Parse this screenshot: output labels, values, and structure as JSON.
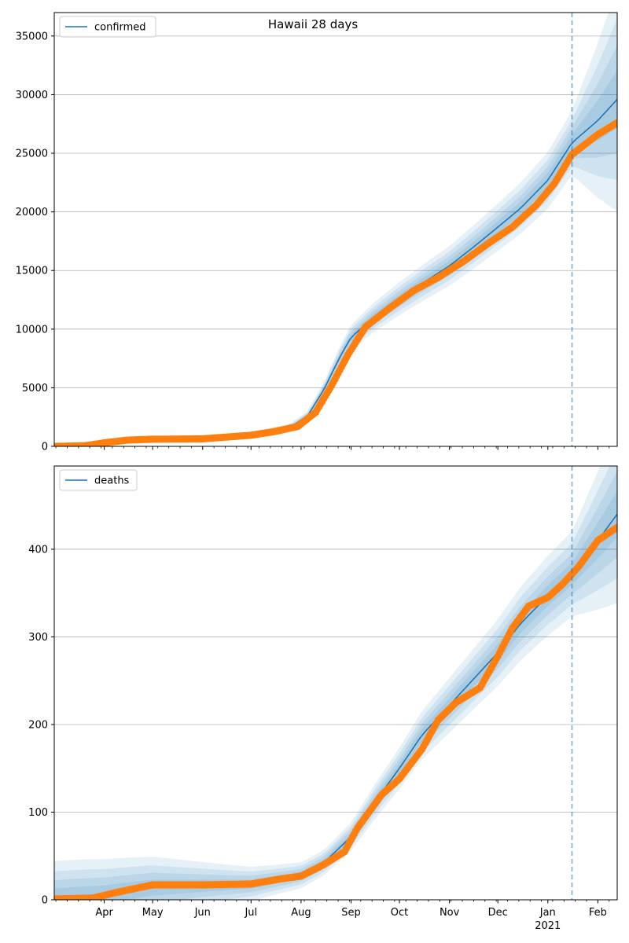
{
  "figure": {
    "title": "Hawaii 28 days"
  },
  "colors": {
    "model_line": "#1f77b4",
    "observed_points": "#ff7f0e",
    "band": "#1f77b4",
    "grid": "#b0b0b0",
    "vline": "#1f77b4"
  },
  "chart_data": [
    {
      "type": "line",
      "name": "confirmed-panel",
      "legend": [
        "confirmed"
      ],
      "legend_position": "top-left",
      "grid": "horizontal",
      "x_axis": {
        "type": "date",
        "xlim": [
          "2020-03-01",
          "2021-02-13"
        ]
      },
      "ylim": [
        0,
        37000
      ],
      "yticks": [
        0,
        5000,
        10000,
        15000,
        20000,
        25000,
        30000,
        35000
      ],
      "vline_date": "2021-01-16",
      "series": [
        {
          "name": "confirmed",
          "role": "model",
          "points": [
            [
              "2020-03-01",
              0
            ],
            [
              "2020-04-01",
              300
            ],
            [
              "2020-05-01",
              600
            ],
            [
              "2020-06-01",
              650
            ],
            [
              "2020-07-01",
              950
            ],
            [
              "2020-07-25",
              1600
            ],
            [
              "2020-08-05",
              2600
            ],
            [
              "2020-08-15",
              4800
            ],
            [
              "2020-08-25",
              7600
            ],
            [
              "2020-09-01",
              9300
            ],
            [
              "2020-09-15",
              11000
            ],
            [
              "2020-10-01",
              12600
            ],
            [
              "2020-10-15",
              13900
            ],
            [
              "2020-11-01",
              15400
            ],
            [
              "2020-11-15",
              16900
            ],
            [
              "2020-12-01",
              18700
            ],
            [
              "2020-12-15",
              20300
            ],
            [
              "2021-01-01",
              22700
            ],
            [
              "2021-01-16",
              25900
            ],
            [
              "2021-02-01",
              27800
            ],
            [
              "2021-02-13",
              29600
            ]
          ]
        },
        {
          "name": "",
          "role": "observed",
          "points": [
            [
              "2020-03-01",
              0
            ],
            [
              "2020-03-20",
              50
            ],
            [
              "2020-04-01",
              300
            ],
            [
              "2020-04-15",
              530
            ],
            [
              "2020-05-01",
              610
            ],
            [
              "2020-06-01",
              640
            ],
            [
              "2020-07-01",
              950
            ],
            [
              "2020-07-15",
              1250
            ],
            [
              "2020-07-30",
              1700
            ],
            [
              "2020-08-10",
              2900
            ],
            [
              "2020-08-20",
              5200
            ],
            [
              "2020-08-30",
              7800
            ],
            [
              "2020-09-10",
              10200
            ],
            [
              "2020-09-25",
              11800
            ],
            [
              "2020-10-10",
              13300
            ],
            [
              "2020-10-25",
              14400
            ],
            [
              "2020-11-10",
              15800
            ],
            [
              "2020-11-25",
              17300
            ],
            [
              "2020-12-10",
              18700
            ],
            [
              "2020-12-25",
              20600
            ],
            [
              "2021-01-05",
              22400
            ],
            [
              "2021-01-16",
              24900
            ],
            [
              "2021-02-01",
              26600
            ],
            [
              "2021-02-13",
              27600
            ]
          ]
        }
      ],
      "bands": [
        {
          "lower": [
            [
              0.8,
              0.2
            ]
          ],
          "upper": []
        }
      ]
    },
    {
      "type": "line",
      "name": "deaths-panel",
      "legend": [
        "deaths"
      ],
      "legend_position": "top-left",
      "grid": "horizontal",
      "x_axis": {
        "type": "date",
        "xlim": [
          "2020-03-01",
          "2021-02-13"
        ],
        "tick_labels": [
          "Apr",
          "May",
          "Jun",
          "Jul",
          "Aug",
          "Sep",
          "Oct",
          "Nov",
          "Dec",
          "Jan",
          "Feb"
        ],
        "year_label": "2021"
      },
      "ylim": [
        0,
        495
      ],
      "yticks": [
        0,
        100,
        200,
        300,
        400
      ],
      "vline_date": "2021-01-16",
      "series": [
        {
          "name": "deaths",
          "role": "model",
          "points": [
            [
              "2020-03-01",
              2
            ],
            [
              "2020-04-01",
              6
            ],
            [
              "2020-05-01",
              14
            ],
            [
              "2020-06-01",
              16
            ],
            [
              "2020-07-01",
              18
            ],
            [
              "2020-08-01",
              28
            ],
            [
              "2020-08-15",
              42
            ],
            [
              "2020-09-01",
              72
            ],
            [
              "2020-09-15",
              110
            ],
            [
              "2020-10-01",
              150
            ],
            [
              "2020-10-15",
              188
            ],
            [
              "2020-11-01",
              222
            ],
            [
              "2020-11-15",
              250
            ],
            [
              "2020-12-01",
              282
            ],
            [
              "2020-12-15",
              315
            ],
            [
              "2021-01-01",
              347
            ],
            [
              "2021-01-16",
              372
            ],
            [
              "2021-02-01",
              410
            ],
            [
              "2021-02-13",
              440
            ]
          ]
        },
        {
          "name": "",
          "role": "observed",
          "points": [
            [
              "2020-03-01",
              1
            ],
            [
              "2020-03-25",
              2
            ],
            [
              "2020-04-10",
              9
            ],
            [
              "2020-05-01",
              17
            ],
            [
              "2020-06-01",
              17
            ],
            [
              "2020-07-01",
              18
            ],
            [
              "2020-07-20",
              24
            ],
            [
              "2020-08-01",
              27
            ],
            [
              "2020-08-15",
              40
            ],
            [
              "2020-08-28",
              55
            ],
            [
              "2020-09-05",
              82
            ],
            [
              "2020-09-20",
              120
            ],
            [
              "2020-10-01",
              138
            ],
            [
              "2020-10-15",
              172
            ],
            [
              "2020-10-25",
              205
            ],
            [
              "2020-11-05",
              225
            ],
            [
              "2020-11-20",
              242
            ],
            [
              "2020-12-01",
              278
            ],
            [
              "2020-12-10",
              310
            ],
            [
              "2020-12-20",
              335
            ],
            [
              "2021-01-01",
              345
            ],
            [
              "2021-01-10",
              360
            ],
            [
              "2021-01-20",
              380
            ],
            [
              "2021-02-01",
              410
            ],
            [
              "2021-02-13",
              425
            ]
          ]
        }
      ]
    }
  ]
}
